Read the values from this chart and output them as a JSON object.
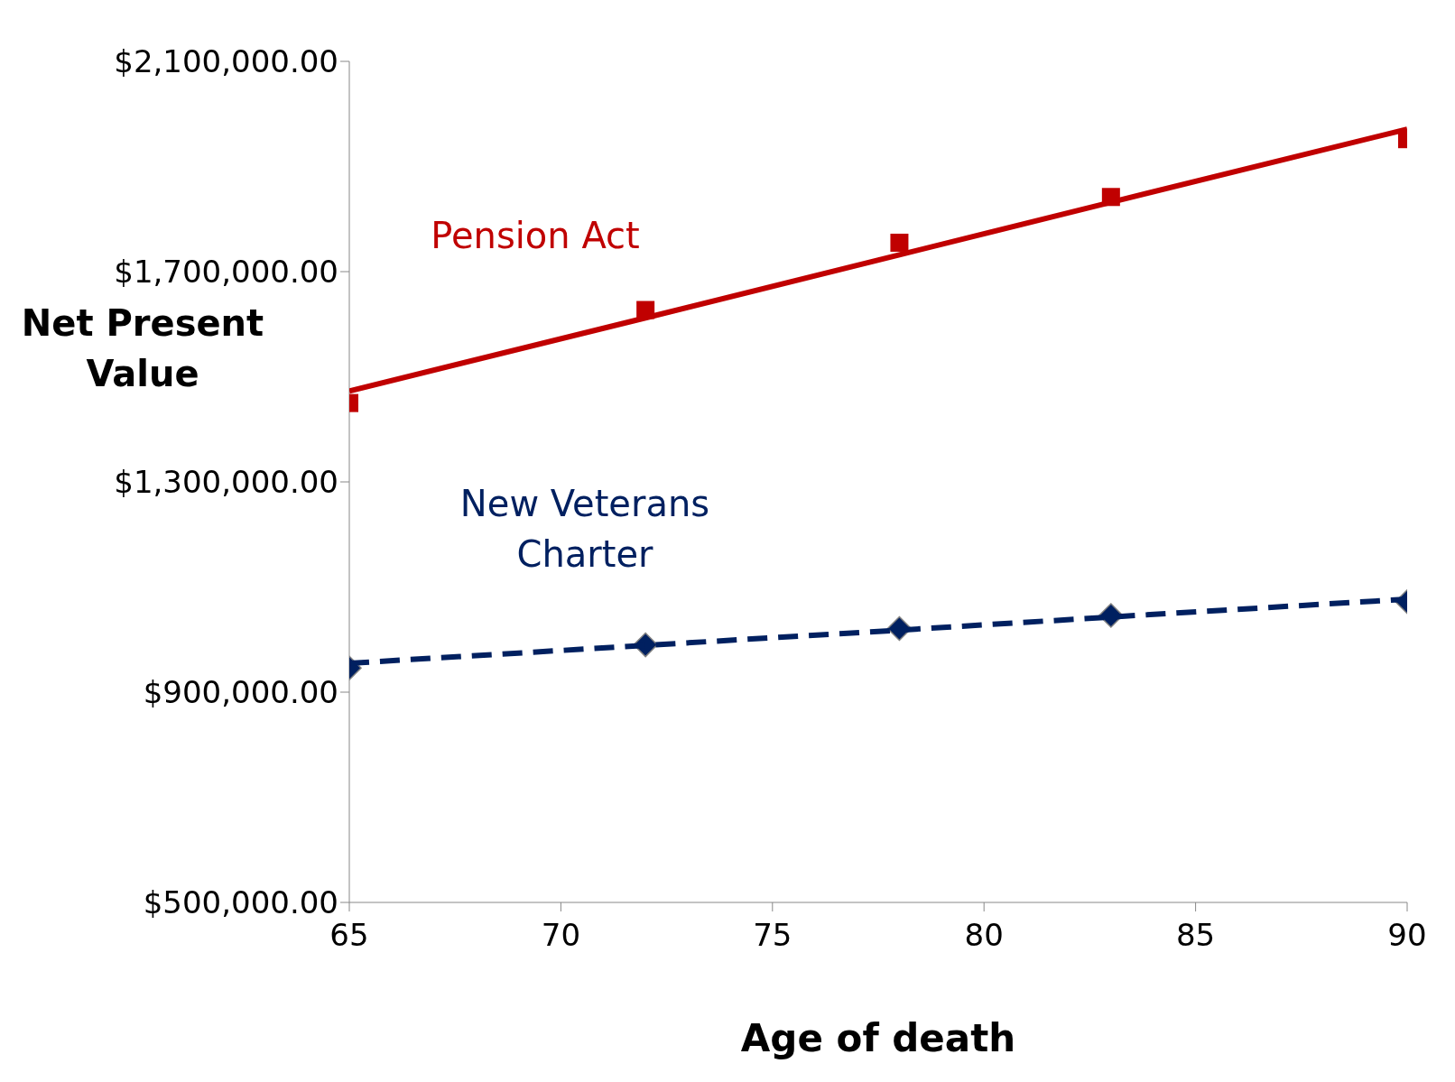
{
  "chart_data": {
    "type": "line",
    "xlabel": "Age of death",
    "ylabel": "Net Present Value",
    "x": [
      65,
      72,
      78,
      83,
      90
    ],
    "series": [
      {
        "name": "Pension Act",
        "type": "scatter",
        "color": "#c00000",
        "marker": "square",
        "values": [
          1450000,
          1627000,
          1755000,
          1842000,
          1952000
        ]
      },
      {
        "color": "#c00000",
        "values": [
          1473000,
          1612000,
          1732000,
          1832000,
          1971000
        ],
        "line_style": "solid",
        "marker": "none"
      },
      {
        "name": "New Veterans Charter",
        "type": "scatter",
        "color": "#002060",
        "marker": "diamond",
        "values": [
          946000,
          990000,
          1021000,
          1046000,
          1072000
        ]
      },
      {
        "color": "#002060",
        "values": [
          955000,
          989000,
          1018000,
          1043000,
          1077000
        ],
        "line_style": "dashed",
        "marker": "none"
      }
    ],
    "xlim": [
      65,
      90
    ],
    "xticks": [
      65,
      70,
      75,
      80,
      85,
      90
    ],
    "ylim": [
      500000,
      2100000
    ],
    "yticks": [
      {
        "value": 500000,
        "label": "$500,000.00"
      },
      {
        "value": 900000,
        "label": "$900,000.00"
      },
      {
        "value": 1300000,
        "label": "$1,300,000.00"
      },
      {
        "value": 1700000,
        "label": "$1,700,000.00"
      },
      {
        "value": 2100000,
        "label": "$2,100,000.00"
      }
    ],
    "grid": false,
    "legend": false
  }
}
